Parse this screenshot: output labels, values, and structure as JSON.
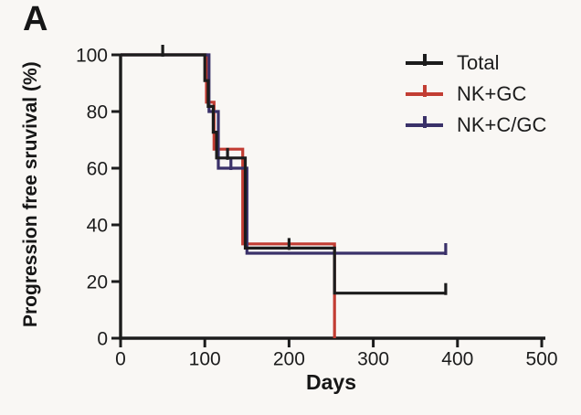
{
  "panel_label": "A",
  "chart_data": {
    "type": "line",
    "subtype": "kaplan-meier-step",
    "title": "",
    "xlabel": "Days",
    "ylabel": "Progression free sruvival (%)",
    "xlim": [
      0,
      500
    ],
    "ylim": [
      0,
      100
    ],
    "x_ticks": [
      0,
      100,
      200,
      300,
      400,
      500
    ],
    "y_ticks": [
      0,
      20,
      40,
      60,
      80,
      100
    ],
    "grid": false,
    "frame": "left-bottom-axes-only",
    "legend_position": "top-right-inside",
    "axis_color": "#1c1c1c",
    "series": [
      {
        "name": "Total",
        "color": "#1c1c1c",
        "steps": [
          [
            0,
            100
          ],
          [
            100,
            100
          ],
          [
            100,
            90.9
          ],
          [
            104,
            90.9
          ],
          [
            104,
            81.8
          ],
          [
            110,
            81.8
          ],
          [
            110,
            72.7
          ],
          [
            114,
            72.7
          ],
          [
            114,
            63.6
          ],
          [
            148,
            63.6
          ],
          [
            148,
            31.8
          ],
          [
            254,
            31.8
          ],
          [
            254,
            15.9
          ],
          [
            386,
            15.9
          ]
        ],
        "censor_marks": [
          [
            50,
            100
          ],
          [
            127,
            63.6
          ],
          [
            200,
            31.8
          ],
          [
            386,
            15.9
          ]
        ]
      },
      {
        "name": "NK+GC",
        "color": "#c23d33",
        "steps": [
          [
            0,
            100
          ],
          [
            102,
            100
          ],
          [
            102,
            83.3
          ],
          [
            111,
            83.3
          ],
          [
            111,
            66.7
          ],
          [
            145,
            66.7
          ],
          [
            145,
            33.3
          ],
          [
            254,
            33.3
          ],
          [
            254,
            0
          ]
        ],
        "censor_marks": []
      },
      {
        "name": "NK+C/GC",
        "color": "#3a3169",
        "steps": [
          [
            0,
            100
          ],
          [
            105,
            100
          ],
          [
            105,
            80
          ],
          [
            116,
            80
          ],
          [
            116,
            60
          ],
          [
            150,
            60
          ],
          [
            150,
            30
          ],
          [
            386,
            30
          ]
        ],
        "censor_marks": [
          [
            131,
            60
          ],
          [
            386,
            30
          ]
        ]
      }
    ]
  }
}
